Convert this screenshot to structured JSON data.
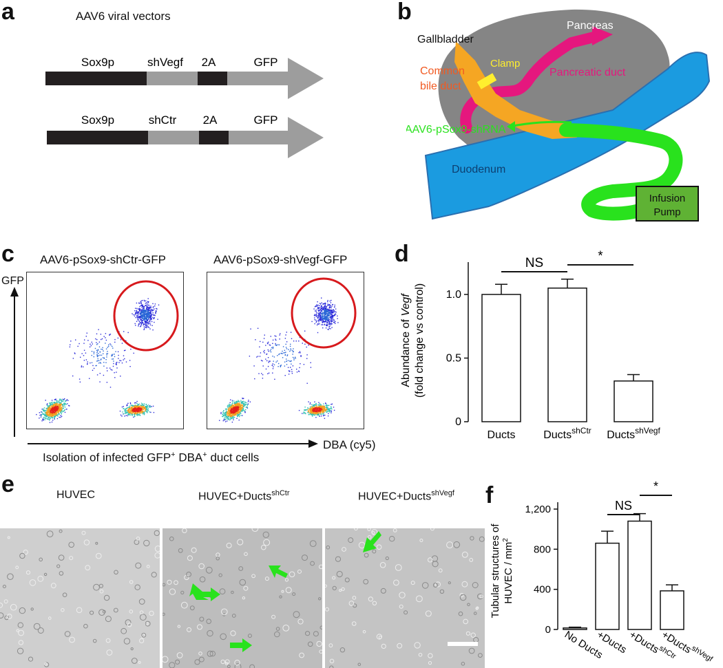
{
  "panels": {
    "a": {
      "label": "a",
      "title": "AAV6 viral vectors",
      "constructs": [
        {
          "segments": [
            "Sox9p",
            "shVegf",
            "2A",
            "GFP"
          ]
        },
        {
          "segments": [
            "Sox9p",
            "shCtr",
            "2A",
            "GFP"
          ]
        }
      ],
      "colors": {
        "promoter": "#231f20",
        "shrna": "#9d9d9d",
        "linker": "#231f20",
        "gfp": "#9d9d9d"
      }
    },
    "b": {
      "label": "b",
      "labels": {
        "pancreas": "Pancreas",
        "gallbladder": "Gallbladder",
        "common_bile_duct_1": "Common",
        "common_bile_duct_2": "bile duct",
        "clamp": "Clamp",
        "pancreatic_duct": "Pancreatic duct",
        "injection": "AAV6-pSox9-shRNA",
        "duodenum": "Duodenum",
        "pump_1": "Infusion",
        "pump_2": "Pump"
      },
      "colors": {
        "pancreas": "#858585",
        "duodenum": "#1b9be0",
        "bile_duct": "#f5a623",
        "pancreatic_duct": "#e5177e",
        "catheter": "#29e21d",
        "pump": "#5fb234",
        "clamp": "#ffef2e",
        "bile_text": "#f15a22",
        "clamp_text": "#ffef2e",
        "duct_text": "#e5177e",
        "injection_text": "#29e21d"
      }
    },
    "c": {
      "label": "c",
      "plots": [
        {
          "title": "AAV6-pSox9-shCtr-GFP"
        },
        {
          "title": "AAV6-pSox9-shVegf-GFP"
        }
      ],
      "y_axis": "GFP",
      "x_axis": "DBA (cy5)",
      "caption_pre": "Isolation of infected GFP",
      "caption_sup1": "+",
      "caption_mid": " DBA",
      "caption_sup2": "+",
      "caption_post": " duct cells",
      "gate_color": "#d7191c"
    },
    "d": {
      "label": "d"
    },
    "e": {
      "label": "e",
      "images": [
        {
          "title": "HUVEC",
          "sup": ""
        },
        {
          "title": "HUVEC+Ducts",
          "sup": "shCtr"
        },
        {
          "title": "HUVEC+Ducts",
          "sup": "shVegf"
        }
      ],
      "arrow_color": "#29e21d"
    },
    "f": {
      "label": "f"
    }
  },
  "chart_data": [
    {
      "type": "bar",
      "panel": "d",
      "categories": [
        "Ducts",
        "Ducts",
        "Ducts"
      ],
      "category_superscripts": [
        "",
        "shCtr",
        "shVegf"
      ],
      "values": [
        1.0,
        1.05,
        0.32
      ],
      "errors": [
        0.08,
        0.07,
        0.05
      ],
      "ylabel_pre": "Abundance of ",
      "ylabel_italic": "Vegf",
      "ylabel_line2": "(fold change vs control)",
      "yticks": [
        "0",
        "0.5",
        "1.0"
      ],
      "ytick_values": [
        0,
        0.5,
        1.0
      ],
      "ylim": [
        0,
        1.2
      ],
      "significance": [
        {
          "from": 0,
          "to": 1,
          "label": "NS"
        },
        {
          "from": 1,
          "to": 2,
          "label": "*"
        }
      ]
    },
    {
      "type": "bar",
      "panel": "f",
      "categories": [
        "No Ducts",
        "+Ducts",
        "+Ducts",
        "+Ducts"
      ],
      "category_superscripts": [
        "",
        "",
        "shCtr",
        "shVegf"
      ],
      "values": [
        15,
        860,
        1080,
        385
      ],
      "errors": [
        8,
        120,
        75,
        60
      ],
      "ylabel_line1": "Tubular structures of",
      "ylabel_line2": "HUVEC / mm",
      "ylabel_sup": "2",
      "yticks": [
        "0",
        "400",
        "800",
        "1,200"
      ],
      "ytick_values": [
        0,
        400,
        800,
        1200
      ],
      "ylim": [
        0,
        1200
      ],
      "significance": [
        {
          "from": 1,
          "to": 2,
          "label": "NS"
        },
        {
          "from": 2,
          "to": 3,
          "label": "*"
        }
      ]
    }
  ]
}
